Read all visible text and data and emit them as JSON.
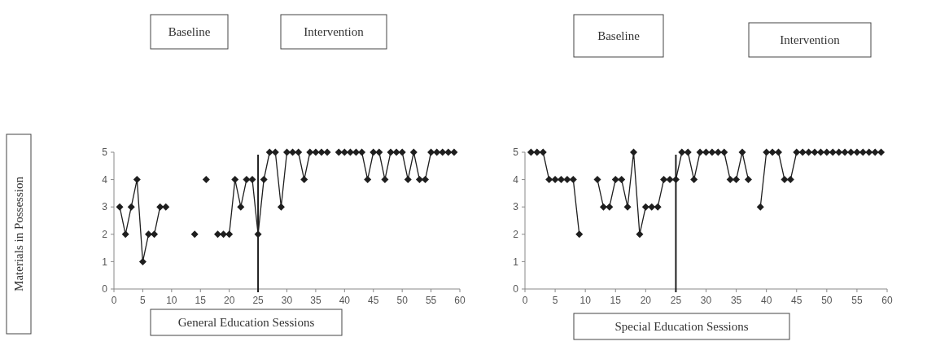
{
  "chart_data": [
    {
      "type": "line",
      "xlabel": "General Education Sessions",
      "ylabel": "Materials in Possession",
      "annotations": [
        "Baseline",
        "Intervention"
      ],
      "marker": "diamond",
      "color": "#1e1e1e",
      "xlim": [
        0,
        60
      ],
      "xticks": [
        0,
        5,
        10,
        15,
        20,
        25,
        30,
        35,
        40,
        45,
        50,
        55,
        60
      ],
      "ylim": [
        0,
        5
      ],
      "yticks": [
        0,
        1,
        2,
        3,
        4,
        5
      ],
      "grid": false,
      "x": [
        1,
        2,
        3,
        4,
        5,
        6,
        7,
        8,
        9,
        10,
        11,
        12,
        13,
        14,
        15,
        16,
        17,
        18,
        19,
        20,
        21,
        22,
        23,
        24,
        25,
        26,
        27,
        28,
        29,
        30,
        31,
        32,
        33,
        34,
        35,
        36,
        37,
        38,
        39,
        40,
        41,
        42,
        43,
        44,
        45,
        46,
        47,
        48,
        49,
        50,
        51,
        52,
        53,
        54,
        55,
        56,
        57,
        58,
        59
      ],
      "values": [
        3,
        2,
        3,
        4,
        1,
        2,
        2,
        3,
        3,
        null,
        null,
        null,
        null,
        2,
        null,
        4,
        null,
        2,
        2,
        2,
        4,
        3,
        4,
        4,
        2,
        4,
        5,
        5,
        3,
        5,
        5,
        5,
        4,
        5,
        5,
        5,
        5,
        null,
        5,
        5,
        5,
        5,
        5,
        4,
        5,
        5,
        4,
        5,
        5,
        5,
        4,
        5,
        4,
        4,
        5,
        5,
        5,
        5,
        5
      ],
      "ref_lines": [
        {
          "axis": "x",
          "value": 25,
          "color": "#1e1e1e"
        }
      ]
    },
    {
      "type": "line",
      "xlabel": "Special Education Sessions",
      "annotations": [
        "Baseline",
        "Intervention"
      ],
      "marker": "diamond",
      "color": "#1e1e1e",
      "xlim": [
        0,
        60
      ],
      "xticks": [
        0,
        5,
        10,
        15,
        20,
        25,
        30,
        35,
        40,
        45,
        50,
        55,
        60
      ],
      "ylim": [
        0,
        5
      ],
      "yticks": [
        0,
        1,
        2,
        3,
        4,
        5
      ],
      "grid": false,
      "x": [
        1,
        2,
        3,
        4,
        5,
        6,
        7,
        8,
        9,
        10,
        11,
        12,
        13,
        14,
        15,
        16,
        17,
        18,
        19,
        20,
        21,
        22,
        23,
        24,
        25,
        26,
        27,
        28,
        29,
        30,
        31,
        32,
        33,
        34,
        35,
        36,
        37,
        38,
        39,
        40,
        41,
        42,
        43,
        44,
        45,
        46,
        47,
        48,
        49,
        50,
        51,
        52,
        53,
        54,
        55,
        56,
        57,
        58,
        59
      ],
      "values": [
        5,
        5,
        5,
        4,
        4,
        4,
        4,
        4,
        2,
        null,
        null,
        4,
        3,
        3,
        4,
        4,
        3,
        5,
        2,
        3,
        3,
        3,
        4,
        4,
        4,
        5,
        5,
        4,
        5,
        5,
        5,
        5,
        5,
        4,
        4,
        5,
        4,
        null,
        3,
        5,
        5,
        5,
        4,
        4,
        5,
        5,
        5,
        5,
        5,
        5,
        5,
        5,
        5,
        5,
        5,
        5,
        5,
        5,
        5
      ],
      "ref_lines": [
        {
          "axis": "x",
          "value": 25,
          "color": "#1e1e1e"
        }
      ]
    }
  ]
}
